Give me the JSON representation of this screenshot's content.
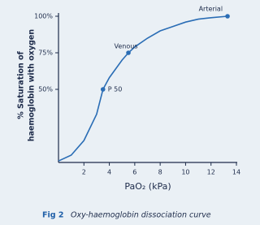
{
  "chart_data": {
    "type": "line",
    "y_label": [
      "% Saturation of",
      "haemoglobin with oxygen"
    ],
    "x_label": "PaO₂ (kPa)",
    "caption_number": "Fig 2",
    "caption": "Oxy-haemoglobin dissociation curve",
    "x": [
      0,
      1,
      2,
      3,
      3.5,
      4,
      5,
      5.5,
      6,
      7,
      8,
      9,
      10,
      11,
      12,
      13.3
    ],
    "series": [
      {
        "color": "#2a6db5",
        "values": [
          1,
          5,
          15,
          33,
          50,
          58,
          70,
          75,
          79,
          85,
          90,
          93,
          96,
          98,
          99,
          100
        ]
      }
    ],
    "points": [
      {
        "label": "P 50",
        "x": 3.5,
        "y": 50
      },
      {
        "label": "Venous",
        "x": 5.5,
        "y": 75
      },
      {
        "label": "Arterial",
        "x": 13.3,
        "y": 100
      }
    ],
    "xlim": [
      0,
      14
    ],
    "xticks": [
      2,
      4,
      6,
      8,
      10,
      12,
      14
    ],
    "ylim": [
      0,
      100
    ],
    "yticks": [
      {
        "value": 50,
        "label": "50%"
      },
      {
        "value": 75,
        "label": "75%"
      },
      {
        "value": 100,
        "label": "100%"
      }
    ]
  }
}
